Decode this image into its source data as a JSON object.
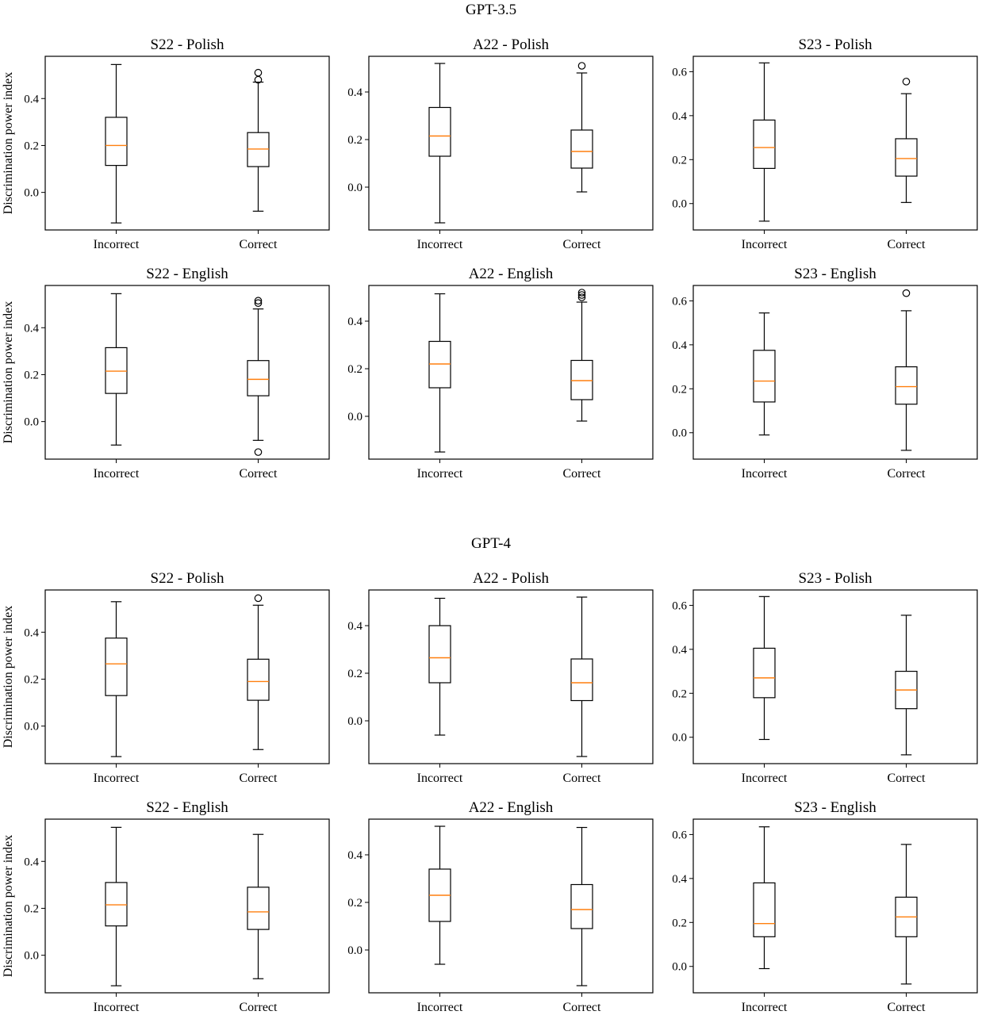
{
  "sections": [
    {
      "title": "GPT-3.5",
      "ylabel": "Discrimination power index",
      "categories": [
        "Incorrect",
        "Correct"
      ],
      "panels": [
        {
          "title": "S22 - Polish",
          "ylim": [
            -0.16,
            0.58
          ],
          "yticks": [
            0.0,
            0.2,
            0.4
          ],
          "boxes": [
            {
              "category": "Incorrect",
              "whisker_low": -0.13,
              "q1": 0.115,
              "median": 0.2,
              "q3": 0.32,
              "whisker_high": 0.545,
              "outliers": []
            },
            {
              "category": "Correct",
              "whisker_low": -0.08,
              "q1": 0.11,
              "median": 0.185,
              "q3": 0.255,
              "whisker_high": 0.47,
              "outliers": [
                0.48,
                0.51
              ]
            }
          ]
        },
        {
          "title": "A22 - Polish",
          "ylim": [
            -0.18,
            0.55
          ],
          "yticks": [
            0.0,
            0.2,
            0.4
          ],
          "boxes": [
            {
              "category": "Incorrect",
              "whisker_low": -0.15,
              "q1": 0.13,
              "median": 0.215,
              "q3": 0.335,
              "whisker_high": 0.52,
              "outliers": []
            },
            {
              "category": "Correct",
              "whisker_low": -0.02,
              "q1": 0.08,
              "median": 0.15,
              "q3": 0.24,
              "whisker_high": 0.48,
              "outliers": [
                0.51
              ]
            }
          ]
        },
        {
          "title": "S23 - Polish",
          "ylim": [
            -0.12,
            0.67
          ],
          "yticks": [
            0.0,
            0.2,
            0.4,
            0.6
          ],
          "boxes": [
            {
              "category": "Incorrect",
              "whisker_low": -0.08,
              "q1": 0.16,
              "median": 0.255,
              "q3": 0.38,
              "whisker_high": 0.64,
              "outliers": []
            },
            {
              "category": "Correct",
              "whisker_low": 0.005,
              "q1": 0.125,
              "median": 0.205,
              "q3": 0.295,
              "whisker_high": 0.5,
              "outliers": [
                0.555
              ]
            }
          ]
        },
        {
          "title": "S22 - English",
          "ylim": [
            -0.16,
            0.58
          ],
          "yticks": [
            0.0,
            0.2,
            0.4
          ],
          "boxes": [
            {
              "category": "Incorrect",
              "whisker_low": -0.1,
              "q1": 0.12,
              "median": 0.215,
              "q3": 0.315,
              "whisker_high": 0.545,
              "outliers": []
            },
            {
              "category": "Correct",
              "whisker_low": -0.08,
              "q1": 0.11,
              "median": 0.18,
              "q3": 0.26,
              "whisker_high": 0.48,
              "outliers": [
                -0.13,
                0.505,
                0.515
              ]
            }
          ]
        },
        {
          "title": "A22 - English",
          "ylim": [
            -0.18,
            0.55
          ],
          "yticks": [
            0.0,
            0.2,
            0.4
          ],
          "boxes": [
            {
              "category": "Incorrect",
              "whisker_low": -0.15,
              "q1": 0.12,
              "median": 0.22,
              "q3": 0.315,
              "whisker_high": 0.515,
              "outliers": []
            },
            {
              "category": "Correct",
              "whisker_low": -0.02,
              "q1": 0.07,
              "median": 0.15,
              "q3": 0.235,
              "whisker_high": 0.48,
              "outliers": [
                0.5,
                0.51,
                0.52
              ]
            }
          ]
        },
        {
          "title": "S23 - English",
          "ylim": [
            -0.12,
            0.67
          ],
          "yticks": [
            0.0,
            0.2,
            0.4,
            0.6
          ],
          "boxes": [
            {
              "category": "Incorrect",
              "whisker_low": -0.01,
              "q1": 0.14,
              "median": 0.235,
              "q3": 0.375,
              "whisker_high": 0.545,
              "outliers": []
            },
            {
              "category": "Correct",
              "whisker_low": -0.08,
              "q1": 0.13,
              "median": 0.21,
              "q3": 0.3,
              "whisker_high": 0.555,
              "outliers": [
                0.635
              ]
            }
          ]
        }
      ]
    },
    {
      "title": "GPT-4",
      "ylabel": "Discrimination power index",
      "categories": [
        "Incorrect",
        "Correct"
      ],
      "panels": [
        {
          "title": "S22 - Polish",
          "ylim": [
            -0.16,
            0.58
          ],
          "yticks": [
            0.0,
            0.2,
            0.4
          ],
          "boxes": [
            {
              "category": "Incorrect",
              "whisker_low": -0.13,
              "q1": 0.13,
              "median": 0.265,
              "q3": 0.375,
              "whisker_high": 0.53,
              "outliers": []
            },
            {
              "category": "Correct",
              "whisker_low": -0.1,
              "q1": 0.11,
              "median": 0.19,
              "q3": 0.285,
              "whisker_high": 0.515,
              "outliers": [
                0.545
              ]
            }
          ]
        },
        {
          "title": "A22 - Polish",
          "ylim": [
            -0.18,
            0.55
          ],
          "yticks": [
            0.0,
            0.2,
            0.4
          ],
          "boxes": [
            {
              "category": "Incorrect",
              "whisker_low": -0.06,
              "q1": 0.16,
              "median": 0.265,
              "q3": 0.4,
              "whisker_high": 0.515,
              "outliers": []
            },
            {
              "category": "Correct",
              "whisker_low": -0.15,
              "q1": 0.085,
              "median": 0.16,
              "q3": 0.26,
              "whisker_high": 0.52,
              "outliers": []
            }
          ]
        },
        {
          "title": "S23 - Polish",
          "ylim": [
            -0.12,
            0.67
          ],
          "yticks": [
            0.0,
            0.2,
            0.4,
            0.6
          ],
          "boxes": [
            {
              "category": "Incorrect",
              "whisker_low": -0.01,
              "q1": 0.18,
              "median": 0.27,
              "q3": 0.405,
              "whisker_high": 0.64,
              "outliers": []
            },
            {
              "category": "Correct",
              "whisker_low": -0.08,
              "q1": 0.13,
              "median": 0.215,
              "q3": 0.3,
              "whisker_high": 0.555,
              "outliers": []
            }
          ]
        },
        {
          "title": "S22 - English",
          "ylim": [
            -0.16,
            0.58
          ],
          "yticks": [
            0.0,
            0.2,
            0.4
          ],
          "boxes": [
            {
              "category": "Incorrect",
              "whisker_low": -0.13,
              "q1": 0.125,
              "median": 0.215,
              "q3": 0.31,
              "whisker_high": 0.545,
              "outliers": []
            },
            {
              "category": "Correct",
              "whisker_low": -0.1,
              "q1": 0.11,
              "median": 0.185,
              "q3": 0.29,
              "whisker_high": 0.515,
              "outliers": []
            }
          ]
        },
        {
          "title": "A22 - English",
          "ylim": [
            -0.18,
            0.55
          ],
          "yticks": [
            0.0,
            0.2,
            0.4
          ],
          "boxes": [
            {
              "category": "Incorrect",
              "whisker_low": -0.06,
              "q1": 0.12,
              "median": 0.23,
              "q3": 0.34,
              "whisker_high": 0.52,
              "outliers": []
            },
            {
              "category": "Correct",
              "whisker_low": -0.15,
              "q1": 0.09,
              "median": 0.17,
              "q3": 0.275,
              "whisker_high": 0.515,
              "outliers": []
            }
          ]
        },
        {
          "title": "S23 - English",
          "ylim": [
            -0.12,
            0.67
          ],
          "yticks": [
            0.0,
            0.2,
            0.4,
            0.6
          ],
          "boxes": [
            {
              "category": "Incorrect",
              "whisker_low": -0.01,
              "q1": 0.135,
              "median": 0.195,
              "q3": 0.38,
              "whisker_high": 0.635,
              "outliers": []
            },
            {
              "category": "Correct",
              "whisker_low": -0.08,
              "q1": 0.135,
              "median": 0.225,
              "q3": 0.315,
              "whisker_high": 0.555,
              "outliers": []
            }
          ]
        }
      ]
    }
  ],
  "chart_data": {
    "type": "box",
    "grid": false,
    "median_color": "#ff7f0e",
    "box_color": "#000000"
  }
}
